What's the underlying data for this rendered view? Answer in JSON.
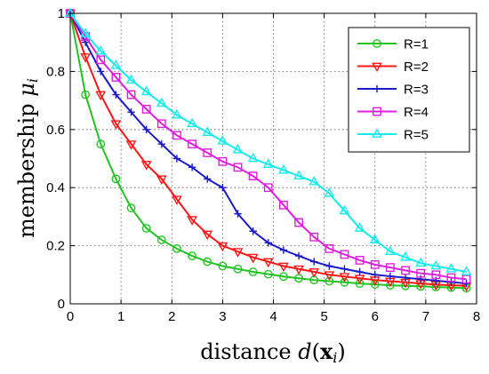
{
  "chart_data": {
    "type": "line",
    "title": "",
    "xlabel": {
      "prefix": "distance ",
      "var": "d",
      "open": "(",
      "bold": "x",
      "sub": "i",
      "close": ")"
    },
    "ylabel": {
      "prefix": "membership ",
      "var": "μ",
      "sub": "i"
    },
    "xlim": [
      0,
      8
    ],
    "ylim": [
      0,
      1
    ],
    "xticks": [
      "0",
      "1",
      "2",
      "3",
      "4",
      "5",
      "6",
      "7",
      "8"
    ],
    "yticks": [
      "0",
      "0.2",
      "0.4",
      "0.6",
      "0.8",
      "1"
    ],
    "grid": true,
    "legend_position": "top-right",
    "x": [
      0,
      0.3,
      0.6,
      0.9,
      1.2,
      1.5,
      1.8,
      2.1,
      2.4,
      2.7,
      3.0,
      3.3,
      3.6,
      3.9,
      4.2,
      4.5,
      4.8,
      5.1,
      5.4,
      5.7,
      6.0,
      6.3,
      6.6,
      6.9,
      7.2,
      7.5,
      7.8
    ],
    "series": [
      {
        "name": "R=1",
        "color": "#22c322",
        "marker": "circle",
        "values": [
          1.0,
          0.72,
          0.55,
          0.43,
          0.33,
          0.26,
          0.22,
          0.19,
          0.165,
          0.145,
          0.13,
          0.12,
          0.11,
          0.102,
          0.094,
          0.088,
          0.082,
          0.078,
          0.074,
          0.07,
          0.067,
          0.064,
          0.062,
          0.06,
          0.058,
          0.056,
          0.054
        ]
      },
      {
        "name": "R=2",
        "color": "#ff1515",
        "marker": "triangle-down",
        "values": [
          1.0,
          0.85,
          0.72,
          0.62,
          0.55,
          0.48,
          0.43,
          0.36,
          0.29,
          0.24,
          0.2,
          0.18,
          0.16,
          0.145,
          0.13,
          0.12,
          0.11,
          0.1,
          0.094,
          0.088,
          0.082,
          0.078,
          0.074,
          0.07,
          0.066,
          0.064,
          0.062
        ]
      },
      {
        "name": "R=3",
        "color": "#1a1acc",
        "marker": "plus",
        "values": [
          1.0,
          0.9,
          0.8,
          0.72,
          0.66,
          0.6,
          0.55,
          0.5,
          0.47,
          0.43,
          0.4,
          0.31,
          0.25,
          0.21,
          0.185,
          0.165,
          0.145,
          0.13,
          0.12,
          0.11,
          0.1,
          0.095,
          0.09,
          0.085,
          0.08,
          0.075,
          0.07
        ]
      },
      {
        "name": "R=4",
        "color": "#e01ee0",
        "marker": "square",
        "values": [
          1.0,
          0.92,
          0.84,
          0.78,
          0.72,
          0.67,
          0.62,
          0.58,
          0.55,
          0.52,
          0.49,
          0.47,
          0.44,
          0.4,
          0.34,
          0.28,
          0.23,
          0.19,
          0.17,
          0.15,
          0.135,
          0.125,
          0.115,
          0.105,
          0.1,
          0.09,
          0.085
        ]
      },
      {
        "name": "R=5",
        "color": "#13ecec",
        "marker": "triangle-up",
        "values": [
          1.0,
          0.93,
          0.87,
          0.82,
          0.77,
          0.73,
          0.69,
          0.65,
          0.62,
          0.59,
          0.56,
          0.53,
          0.5,
          0.48,
          0.46,
          0.44,
          0.42,
          0.38,
          0.32,
          0.26,
          0.22,
          0.18,
          0.16,
          0.14,
          0.13,
          0.12,
          0.11
        ]
      }
    ]
  }
}
